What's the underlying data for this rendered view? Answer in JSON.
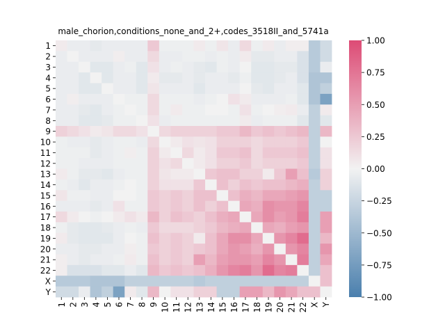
{
  "chart_data": {
    "type": "heatmap",
    "title": "male_chorion,conditions_none_and_2+,codes_3518II_and_5741a",
    "xlabel": "",
    "ylabel": "",
    "categories": [
      "1",
      "2",
      "3",
      "4",
      "5",
      "6",
      "7",
      "8",
      "9",
      "10",
      "11",
      "12",
      "13",
      "14",
      "15",
      "16",
      "17",
      "18",
      "19",
      "20",
      "21",
      "22",
      "X",
      "Y"
    ],
    "colorbar": {
      "vmin": -1.0,
      "vmax": 1.0,
      "ticks": [
        -1.0,
        -0.75,
        -0.5,
        -0.25,
        0.0,
        0.25,
        0.5,
        0.75,
        1.0
      ],
      "tick_labels": [
        "−1.00",
        "−0.75",
        "−0.50",
        "−0.25",
        "0.00",
        "0.25",
        "0.50",
        "0.75",
        "1.00"
      ],
      "colors": {
        "low": "#4a7fad",
        "mid": "#f2f2f2",
        "high": "#dd4b75"
      }
    },
    "values": [
      [
        0.05,
        -0.05,
        -0.05,
        -0.08,
        -0.05,
        -0.05,
        -0.05,
        -0.05,
        0.25,
        -0.03,
        -0.03,
        -0.03,
        0.05,
        -0.03,
        0.08,
        -0.05,
        0.15,
        -0.03,
        0.05,
        -0.05,
        0.03,
        0.03,
        -0.35,
        -0.2
      ],
      [
        -0.05,
        0.0,
        -0.05,
        -0.05,
        -0.05,
        0.03,
        -0.05,
        -0.05,
        0.15,
        -0.05,
        -0.05,
        -0.03,
        -0.03,
        -0.05,
        -0.03,
        -0.05,
        0.05,
        -0.08,
        -0.08,
        -0.05,
        -0.05,
        -0.15,
        -0.35,
        -0.2
      ],
      [
        -0.05,
        -0.05,
        0.0,
        -0.1,
        -0.1,
        -0.05,
        -0.03,
        -0.1,
        0.1,
        -0.05,
        -0.03,
        -0.05,
        -0.08,
        -0.1,
        -0.03,
        -0.05,
        0.0,
        -0.1,
        -0.1,
        -0.08,
        -0.08,
        -0.15,
        -0.35,
        -0.05
      ],
      [
        -0.05,
        -0.05,
        -0.1,
        0.0,
        -0.1,
        -0.05,
        -0.05,
        -0.1,
        0.05,
        -0.08,
        -0.08,
        -0.05,
        -0.08,
        -0.05,
        -0.05,
        -0.08,
        -0.03,
        -0.1,
        -0.1,
        -0.08,
        -0.05,
        -0.15,
        -0.4,
        -0.4
      ],
      [
        -0.05,
        -0.05,
        -0.1,
        -0.1,
        0.0,
        -0.05,
        -0.05,
        -0.1,
        0.08,
        -0.05,
        -0.05,
        -0.05,
        -0.1,
        -0.05,
        -0.05,
        -0.05,
        0.0,
        -0.08,
        -0.1,
        -0.05,
        -0.05,
        -0.1,
        -0.4,
        -0.3
      ],
      [
        -0.05,
        0.03,
        -0.05,
        -0.05,
        -0.05,
        0.0,
        -0.03,
        -0.03,
        0.15,
        -0.03,
        -0.03,
        -0.03,
        -0.05,
        -0.03,
        0.0,
        0.1,
        0.05,
        -0.05,
        -0.05,
        -0.05,
        -0.03,
        -0.1,
        -0.4,
        -0.7
      ],
      [
        -0.05,
        -0.05,
        -0.08,
        -0.1,
        -0.05,
        -0.03,
        0.0,
        -0.03,
        0.15,
        -0.03,
        0.05,
        -0.03,
        -0.03,
        0.0,
        0.0,
        -0.03,
        0.1,
        -0.03,
        0.0,
        0.03,
        0.05,
        -0.05,
        -0.3,
        0.05
      ],
      [
        -0.05,
        -0.05,
        -0.1,
        -0.1,
        -0.08,
        -0.03,
        -0.03,
        0.0,
        0.1,
        -0.05,
        -0.03,
        -0.03,
        -0.03,
        -0.03,
        -0.03,
        -0.03,
        0.05,
        -0.05,
        -0.03,
        -0.03,
        -0.03,
        -0.1,
        -0.3,
        -0.1
      ],
      [
        0.2,
        0.15,
        0.1,
        0.05,
        0.08,
        0.15,
        0.15,
        0.1,
        0.0,
        0.15,
        0.2,
        0.2,
        0.2,
        0.2,
        0.25,
        0.25,
        0.35,
        0.25,
        0.3,
        0.25,
        0.3,
        0.35,
        -0.3,
        0.35
      ],
      [
        -0.03,
        -0.05,
        -0.05,
        -0.08,
        -0.05,
        -0.03,
        -0.03,
        -0.05,
        0.15,
        0.0,
        0.05,
        0.1,
        0.08,
        0.1,
        0.2,
        0.2,
        0.2,
        0.15,
        0.2,
        0.2,
        0.2,
        0.25,
        -0.3,
        0.0
      ],
      [
        -0.03,
        -0.03,
        -0.03,
        -0.08,
        -0.05,
        -0.03,
        0.03,
        -0.03,
        0.2,
        0.05,
        0.0,
        0.15,
        0.05,
        0.1,
        0.25,
        0.25,
        0.3,
        0.15,
        0.25,
        0.25,
        0.25,
        0.3,
        -0.3,
        0.1
      ],
      [
        -0.03,
        -0.03,
        -0.05,
        -0.05,
        -0.05,
        -0.03,
        -0.03,
        -0.03,
        0.2,
        0.1,
        0.15,
        0.0,
        0.05,
        0.1,
        0.2,
        0.2,
        0.25,
        0.15,
        0.2,
        0.2,
        0.2,
        0.25,
        -0.3,
        0.1
      ],
      [
        0.05,
        -0.03,
        -0.08,
        -0.08,
        -0.1,
        -0.05,
        -0.03,
        -0.03,
        0.2,
        0.08,
        0.05,
        0.05,
        0.0,
        0.25,
        0.3,
        0.3,
        0.2,
        0.2,
        0.05,
        0.25,
        0.5,
        0.3,
        -0.35,
        0.2
      ],
      [
        -0.03,
        -0.05,
        -0.1,
        -0.05,
        -0.05,
        -0.03,
        0.0,
        -0.03,
        0.2,
        0.1,
        0.1,
        0.1,
        0.25,
        0.0,
        0.3,
        0.2,
        0.3,
        0.25,
        0.3,
        0.3,
        0.35,
        0.4,
        -0.3,
        0.2
      ],
      [
        0.08,
        -0.03,
        -0.03,
        -0.05,
        -0.05,
        0.0,
        0.0,
        -0.03,
        0.25,
        0.2,
        0.25,
        0.2,
        0.3,
        0.3,
        0.0,
        0.3,
        0.4,
        0.35,
        0.45,
        0.45,
        0.5,
        0.55,
        -0.3,
        -0.3
      ],
      [
        -0.05,
        -0.05,
        -0.05,
        -0.08,
        -0.05,
        0.1,
        -0.03,
        -0.03,
        0.25,
        0.2,
        0.25,
        0.2,
        0.3,
        0.2,
        0.3,
        0.0,
        0.45,
        0.4,
        0.6,
        0.55,
        0.55,
        0.65,
        -0.3,
        -0.3
      ],
      [
        0.15,
        0.05,
        0.0,
        -0.03,
        0.0,
        0.05,
        0.1,
        0.05,
        0.35,
        0.2,
        0.3,
        0.25,
        0.2,
        0.3,
        0.4,
        0.45,
        0.0,
        0.45,
        0.6,
        0.5,
        0.55,
        0.7,
        -0.3,
        0.5
      ],
      [
        -0.03,
        -0.08,
        -0.1,
        -0.1,
        -0.08,
        -0.05,
        -0.03,
        -0.05,
        0.25,
        0.15,
        0.15,
        0.15,
        0.2,
        0.25,
        0.35,
        0.4,
        0.45,
        0.0,
        0.45,
        0.4,
        0.5,
        0.55,
        -0.3,
        0.5
      ],
      [
        0.05,
        -0.08,
        -0.1,
        -0.1,
        -0.1,
        -0.05,
        0.0,
        -0.03,
        0.3,
        0.2,
        0.25,
        0.2,
        0.05,
        0.3,
        0.45,
        0.6,
        0.6,
        0.45,
        0.0,
        0.55,
        0.65,
        0.8,
        -0.3,
        0.35
      ],
      [
        -0.05,
        -0.05,
        -0.08,
        -0.08,
        -0.05,
        -0.05,
        0.03,
        -0.03,
        0.25,
        0.2,
        0.25,
        0.2,
        0.25,
        0.3,
        0.45,
        0.55,
        0.5,
        0.4,
        0.55,
        0.0,
        0.55,
        0.65,
        -0.3,
        0.55
      ],
      [
        0.03,
        -0.05,
        -0.08,
        -0.05,
        -0.05,
        -0.03,
        0.05,
        -0.03,
        0.3,
        0.2,
        0.25,
        0.2,
        0.5,
        0.35,
        0.5,
        0.55,
        0.55,
        0.5,
        0.65,
        0.55,
        0.0,
        0.7,
        -0.3,
        0.45
      ],
      [
        0.03,
        -0.15,
        -0.15,
        -0.15,
        -0.1,
        -0.1,
        -0.05,
        -0.1,
        0.35,
        0.25,
        0.3,
        0.25,
        0.3,
        0.4,
        0.55,
        0.65,
        0.7,
        0.55,
        0.8,
        0.65,
        0.7,
        0.0,
        -0.3,
        0.3
      ],
      [
        -0.35,
        -0.35,
        -0.35,
        -0.4,
        -0.4,
        -0.4,
        -0.3,
        -0.3,
        -0.3,
        -0.3,
        -0.3,
        -0.3,
        -0.35,
        -0.3,
        -0.3,
        -0.3,
        -0.3,
        -0.3,
        -0.3,
        -0.3,
        -0.3,
        -0.3,
        0.0,
        0.3
      ],
      [
        -0.2,
        -0.2,
        -0.05,
        -0.4,
        -0.3,
        -0.7,
        0.05,
        -0.1,
        0.35,
        0.0,
        0.1,
        0.1,
        0.2,
        0.2,
        -0.3,
        -0.3,
        0.5,
        0.5,
        0.35,
        0.55,
        0.45,
        0.3,
        0.3,
        0.0
      ]
    ]
  }
}
